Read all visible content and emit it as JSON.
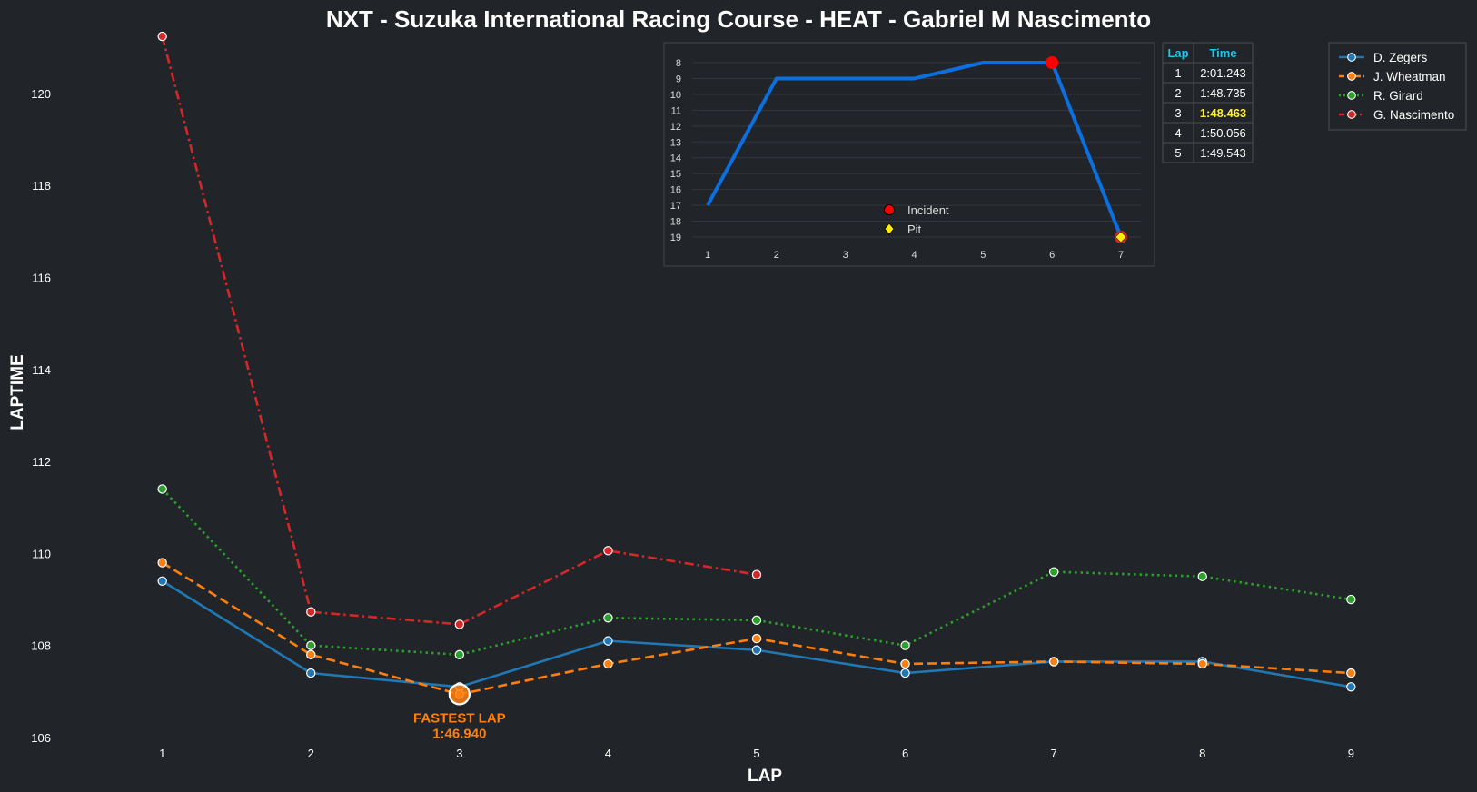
{
  "chart_data": [
    {
      "type": "line",
      "title": "NXT - Suzuka International Racing Course - HEAT - Gabriel M Nascimento",
      "xlabel": "LAP",
      "ylabel": "LAPTIME",
      "x": [
        1,
        2,
        3,
        4,
        5,
        6,
        7,
        8,
        9
      ],
      "xlim": [
        0.25,
        9.75
      ],
      "ylim": [
        106,
        121.3
      ],
      "yticks": [
        106,
        108,
        110,
        112,
        114,
        116,
        118,
        120
      ],
      "grid": false,
      "legend_position": "top-right",
      "series": [
        {
          "name": "D. Zegers",
          "color": "#1f77b4",
          "dash": "solid",
          "values": [
            109.4,
            107.4,
            107.1,
            108.1,
            107.9,
            107.4,
            107.65,
            107.65,
            107.1
          ]
        },
        {
          "name": "J. Wheatman",
          "color": "#ff7f0e",
          "dash": "dashed",
          "values": [
            109.8,
            107.8,
            106.94,
            107.6,
            108.15,
            107.6,
            107.65,
            107.6,
            107.4
          ]
        },
        {
          "name": "R. Girard",
          "color": "#2ca02c",
          "dash": "dotted",
          "values": [
            111.4,
            108.0,
            107.8,
            108.6,
            108.55,
            108.0,
            109.6,
            109.5,
            109.0
          ]
        },
        {
          "name": "G. Nascimento",
          "color": "#d62728",
          "dash": "dashdot",
          "values": [
            121.24,
            108.73,
            108.46,
            110.06,
            109.54,
            null,
            null,
            null,
            null
          ]
        }
      ],
      "annotation": {
        "line1": "FASTEST LAP",
        "line2": "1:46.940",
        "x": 3,
        "y": 106.94,
        "color": "#ff7f0e"
      }
    },
    {
      "type": "line",
      "title": "",
      "x": [
        1,
        2,
        3,
        4,
        5,
        6,
        7
      ],
      "values": [
        17,
        9,
        9,
        9,
        8,
        8,
        19
      ],
      "ylim": [
        19.5,
        7.5
      ],
      "yticks": [
        8,
        9,
        10,
        11,
        12,
        13,
        14,
        15,
        16,
        17,
        18,
        19
      ],
      "color": "#0c6fe0",
      "markers": [
        {
          "label": "Incident",
          "x": 6,
          "y": 8,
          "color": "#ff0000"
        },
        {
          "label": "Pit",
          "x": 7,
          "y": 19,
          "color": "#ffee00"
        }
      ],
      "legend": [
        "Incident",
        "Pit"
      ]
    }
  ],
  "lap_table": {
    "headers": [
      "Lap",
      "Time"
    ],
    "rows": [
      [
        "1",
        "2:01.243"
      ],
      [
        "2",
        "1:48.735"
      ],
      [
        "3",
        "1:48.463"
      ],
      [
        "4",
        "1:50.056"
      ],
      [
        "5",
        "1:49.543"
      ]
    ],
    "best_row": 2
  }
}
